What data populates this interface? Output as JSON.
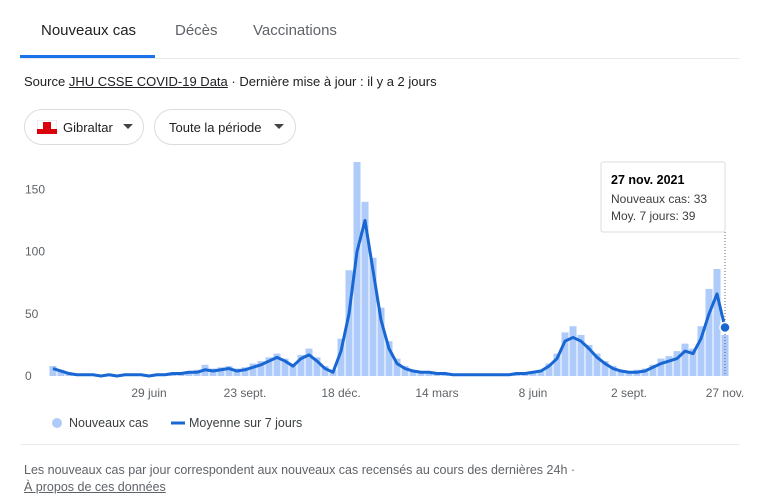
{
  "tabs": [
    "Nouveaux cas",
    "Décès",
    "Vaccinations"
  ],
  "source": {
    "prefix": "Source",
    "link": "JHU CSSE COVID-19 Data",
    "updated": "· Dernière mise à jour : il y a 2 jours"
  },
  "filters": [
    "Gibraltar",
    "Toute la période"
  ],
  "chart_data": {
    "type": "bar",
    "categories": [
      null,
      null,
      null,
      null,
      null,
      null,
      null,
      null,
      null,
      null,
      null,
      null,
      "29 juin",
      null,
      null,
      null,
      null,
      null,
      null,
      null,
      null,
      null,
      null,
      null,
      "23 sept.",
      null,
      null,
      null,
      null,
      null,
      null,
      null,
      null,
      null,
      null,
      null,
      "18 déc.",
      null,
      null,
      null,
      null,
      null,
      null,
      null,
      null,
      null,
      null,
      null,
      "14 mars",
      null,
      null,
      null,
      null,
      null,
      null,
      null,
      null,
      null,
      null,
      null,
      "8 juin",
      null,
      null,
      null,
      null,
      null,
      null,
      null,
      null,
      null,
      null,
      null,
      "2 sept.",
      null,
      null,
      null,
      null,
      null,
      null,
      null,
      null,
      null,
      null,
      null,
      "27 nov."
    ],
    "series": [
      {
        "name": "Nouveaux cas",
        "type": "bar",
        "color": "#aecbfa",
        "values": [
          8,
          5,
          3,
          2,
          1,
          1,
          0,
          2,
          0,
          1,
          2,
          1,
          0,
          2,
          1,
          3,
          3,
          4,
          5,
          9,
          6,
          7,
          8,
          6,
          7,
          10,
          12,
          15,
          18,
          14,
          10,
          17,
          22,
          15,
          8,
          5,
          30,
          85,
          172,
          140,
          95,
          55,
          28,
          14,
          8,
          5,
          4,
          3,
          3,
          2,
          1,
          2,
          1,
          1,
          2,
          1,
          0,
          1,
          3,
          2,
          4,
          5,
          10,
          18,
          35,
          40,
          33,
          25,
          18,
          12,
          8,
          5,
          4,
          5,
          6,
          9,
          14,
          16,
          20,
          26,
          22,
          40,
          70,
          86,
          33
        ]
      },
      {
        "name": "Moyenne sur 7 jours",
        "type": "line",
        "color": "#1967d2",
        "values": [
          6,
          4,
          2,
          1,
          1,
          1,
          0,
          1,
          0,
          1,
          1,
          1,
          0,
          1,
          1,
          2,
          2,
          3,
          3,
          5,
          4,
          5,
          6,
          4,
          5,
          7,
          9,
          12,
          15,
          12,
          8,
          14,
          17,
          12,
          6,
          3,
          20,
          50,
          100,
          125,
          85,
          45,
          22,
          10,
          6,
          4,
          3,
          3,
          2,
          2,
          1,
          1,
          1,
          1,
          1,
          1,
          1,
          1,
          2,
          2,
          3,
          4,
          8,
          14,
          28,
          31,
          28,
          22,
          15,
          10,
          6,
          4,
          3,
          3,
          4,
          7,
          10,
          12,
          14,
          20,
          18,
          30,
          50,
          66,
          39
        ]
      }
    ],
    "ylim": [
      0,
      172
    ],
    "yticks": [
      0,
      50,
      100,
      150
    ],
    "grid": false,
    "tooltip": {
      "date": "27 nov. 2021",
      "lines": [
        "Nouveaux cas: 33",
        "Moy. 7 jours: 39"
      ]
    }
  },
  "footer": {
    "note": "Les nouveaux cas par jour correspondent aux nouveaux cas recensés au cours des dernières 24h  ·",
    "link": "À propos de ces données"
  }
}
